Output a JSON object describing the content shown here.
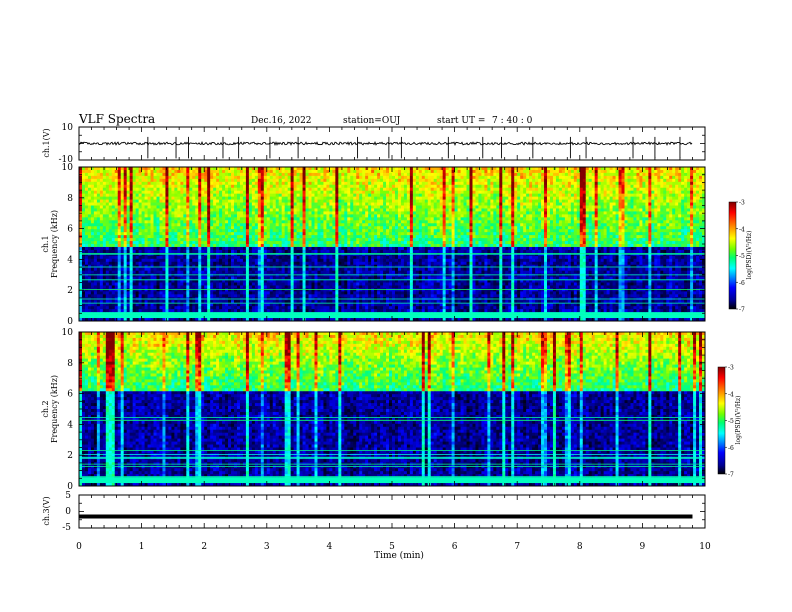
{
  "header": {
    "title": "VLF Spectra",
    "date": "Dec.16, 2022",
    "station": "station=OUJ",
    "start_ut_label": "start  UT =",
    "start_ut_value": "7 : 40 : 0"
  },
  "chart_data": {
    "type": "heatmap",
    "x_axis": {
      "label": "Time  (min)",
      "range": [
        0,
        10
      ],
      "ticks": [
        "0",
        "1",
        "2",
        "3",
        "4",
        "5",
        "6",
        "7",
        "8",
        "9",
        "10"
      ]
    },
    "panels": [
      {
        "id": "ch1-waveform",
        "type": "line",
        "ylabel": "ch.1(V)",
        "ylim": [
          -10,
          10
        ],
        "ytick_labels": [
          "10",
          "-10"
        ],
        "baseline_value": 0,
        "data_end_min": 9.8,
        "spike_times_min": [
          1.1,
          1.55,
          1.75,
          2.3,
          2.55,
          3.05,
          3.5,
          4.45,
          4.95,
          5.15,
          5.9,
          6.45,
          6.75,
          7.25,
          7.85,
          8.1,
          8.85,
          9.2,
          9.6
        ]
      },
      {
        "id": "ch1-spectrogram",
        "type": "heatmap",
        "ylabel": "ch.1",
        "ylabel2": "Frequency (kHz)",
        "ylim": [
          0,
          10
        ],
        "ytick_labels": [
          "0",
          "2",
          "4",
          "6",
          "8",
          "10"
        ],
        "colorbar": {
          "label": "log(PSD)(V²/Hz)",
          "range": [
            -7,
            -3
          ],
          "tick_labels": [
            "-3",
            "-4",
            "-5",
            "-6",
            "-7"
          ]
        }
      },
      {
        "id": "ch2-spectrogram",
        "type": "heatmap",
        "ylabel": "ch.2",
        "ylabel2": "Frequency (kHz)",
        "ylim": [
          0,
          10
        ],
        "ytick_labels": [
          "0",
          "2",
          "4",
          "6",
          "8",
          "10"
        ],
        "colorbar": {
          "label": "log(PSD)(V²/Hz)",
          "range": [
            -7,
            -3
          ],
          "tick_labels": [
            "-3",
            "-4",
            "-5",
            "-6",
            "-7"
          ]
        }
      },
      {
        "id": "ch3-waveform",
        "type": "line",
        "ylabel": "ch.3(V)",
        "ylim": [
          -5,
          5
        ],
        "ytick_labels": [
          "5",
          "0",
          "-5"
        ],
        "constant_value": -1.5,
        "data_end_min": 9.8
      }
    ]
  },
  "colors": {
    "waveform": "#000000",
    "axes": "#000000",
    "colormap": [
      "#000000",
      "#000080",
      "#0000ff",
      "#00a0ff",
      "#00ffff",
      "#00ff80",
      "#80ff00",
      "#ffff00",
      "#ff8000",
      "#ff0000",
      "#800000"
    ]
  }
}
